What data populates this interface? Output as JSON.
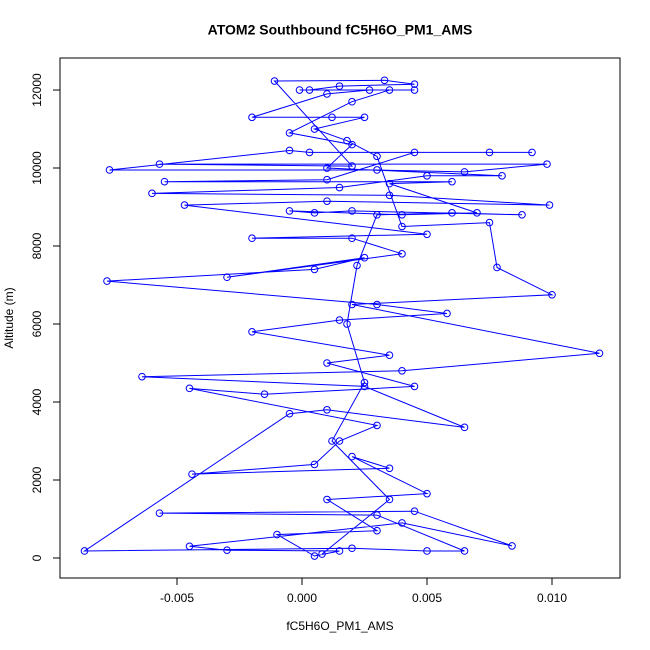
{
  "chart_data": {
    "type": "line",
    "title": "ATOM2 Southbound fC5H6O_PM1_AMS",
    "x_label": "fC5H6O_PM1_AMS",
    "y_label": "Altitude (m)",
    "color": "#0000ff",
    "markers": true,
    "grid": false,
    "xlim": [
      -0.00968,
      0.01272
    ],
    "ylim": [
      -513,
      12821
    ],
    "xticks": [
      -0.005,
      {
        "value": 0,
        "label": "0.000"
      },
      0.005,
      {
        "value": 0.01,
        "label": "0.010"
      }
    ],
    "yticks": [
      0,
      2000,
      4000,
      6000,
      8000,
      10000,
      12000
    ],
    "x": [
      0.0008,
      0.0035,
      0.0012,
      0.0025,
      0.0018,
      0.0022,
      0.003,
      0.006,
      0.0088,
      0.002,
      0.0005,
      -0.0005,
      0.004,
      0.007,
      0.0035,
      0.006,
      -0.0055,
      0.001,
      0.0045,
      0.0075,
      0.0092,
      0.0003,
      -0.0005,
      -0.0077,
      0.003,
      0.0065,
      0.0098,
      -0.0057,
      0.002,
      -0.0011,
      0.0033,
      0.0045,
      0.0015,
      0.0003,
      0.0027,
      0.001,
      -0.002,
      0.0012,
      0.0025,
      0.0005,
      0.0018,
      0.003,
      0.004,
      0.0075,
      0.0078,
      0.01,
      0.002,
      0.0119,
      0.004,
      -0.0064,
      0.0025,
      0.0065,
      0.001,
      -0.0005,
      -0.0087,
      0.002,
      0.005,
      0.0065,
      0.003,
      -0.0057,
      0.0045,
      0.0084,
      0.004,
      -0.0045,
      -0.003,
      0.0015,
      0.0005,
      -0.001,
      0.003,
      0.001,
      0.005,
      0.002,
      0.0035,
      -0.0044,
      0.0005,
      0.0015,
      0.003,
      -0.0045,
      -0.0015,
      0.0045,
      0.001,
      0.0035,
      -0.002,
      0.0015,
      0.0058,
      0.003,
      -0.0078,
      0.0005,
      0.0025,
      -0.003,
      0.004,
      0.002,
      -0.002,
      0.005,
      -0.0047,
      0.001,
      0.0099,
      0.0035,
      -0.006,
      0.0015,
      0.005,
      0.008,
      0.001,
      0.002,
      -0.0005,
      0.002,
      0.0035,
      -0.0001,
      0.0045
    ],
    "values": [
      100,
      1500,
      3000,
      4500,
      6000,
      7500,
      8800,
      8850,
      8800,
      8900,
      8850,
      8900,
      8800,
      8850,
      9600,
      9650,
      9650,
      9700,
      10400,
      10400,
      10400,
      10400,
      10450,
      9950,
      9950,
      9900,
      10100,
      10100,
      10050,
      12230,
      12250,
      12150,
      12100,
      12000,
      12000,
      11900,
      11300,
      11300,
      11300,
      11000,
      10700,
      10300,
      8500,
      8600,
      7450,
      6750,
      6500,
      5250,
      4800,
      4650,
      4400,
      3350,
      3800,
      3700,
      180,
      250,
      180,
      180,
      1100,
      1150,
      1200,
      310,
      900,
      300,
      200,
      180,
      50,
      600,
      700,
      1500,
      1650,
      2600,
      2300,
      2150,
      2400,
      3000,
      3400,
      4350,
      4200,
      4400,
      5000,
      5200,
      5800,
      6100,
      6270,
      6500,
      7100,
      7400,
      7700,
      7200,
      7800,
      8200,
      8200,
      8300,
      9050,
      9150,
      9050,
      9300,
      9350,
      9500,
      9800,
      9800,
      10000,
      10600,
      10900,
      11700,
      12000,
      12000,
      12000
    ]
  }
}
